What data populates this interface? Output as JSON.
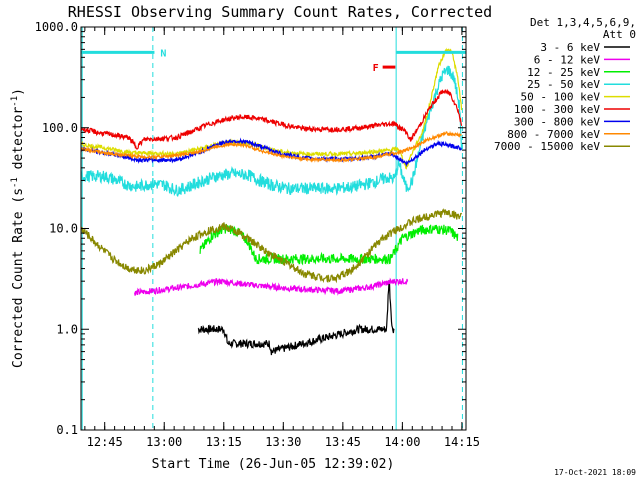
{
  "chart_data": {
    "type": "line",
    "title": "RHESSI Observing Summary Count Rates, Corrected",
    "xlabel": "Start Time (26-Jun-05 12:39:02)",
    "ylabel_main": "Corrected Count Rate (s",
    "ylabel_sup1": "-1",
    "ylabel_mid": " detector",
    "ylabel_sup2": "-1",
    "ylabel_end": ")",
    "y_scale": "log",
    "ylim": [
      0.1,
      1000
    ],
    "xlim_minutes": [
      0,
      97
    ],
    "x_ticks": [
      {
        "label": "12:45",
        "minutes": 5.97
      },
      {
        "label": "13:00",
        "minutes": 20.97
      },
      {
        "label": "13:15",
        "minutes": 35.97
      },
      {
        "label": "13:30",
        "minutes": 50.97
      },
      {
        "label": "13:45",
        "minutes": 65.97
      },
      {
        "label": "14:00",
        "minutes": 80.97
      },
      {
        "label": "14:15",
        "minutes": 95.97
      }
    ],
    "y_ticks": [
      {
        "label": "0.1",
        "value": 0.1
      },
      {
        "label": "1.0",
        "value": 1
      },
      {
        "label": "10.0",
        "value": 10
      },
      {
        "label": "100.0",
        "value": 100
      },
      {
        "label": "1000.0",
        "value": 1000
      }
    ],
    "legend_header": [
      "Det 1,3,4,5,6,9,",
      "Att 0"
    ],
    "legend_position": "right",
    "footer_date": "17-Oct-2021 18:09",
    "flags": [
      {
        "label": "N",
        "color": "#22dddd",
        "x0": 0,
        "x1": 18.5,
        "y": 560
      },
      {
        "label": "F",
        "color": "#ee0000",
        "x0": 76.0,
        "x1": 79.2,
        "y": 400
      },
      {
        "label": "",
        "color": "#22dddd",
        "x0": 79.5,
        "x1": 97,
        "y": 560
      }
    ],
    "vlines": [
      {
        "minutes": 0.3,
        "color": "#22dddd",
        "style": "solid"
      },
      {
        "minutes": 18.1,
        "color": "#22dddd",
        "style": "dashed"
      },
      {
        "minutes": 79.4,
        "color": "#22dddd",
        "style": "solid"
      },
      {
        "minutes": 96.1,
        "color": "#22dddd",
        "style": "dashed"
      }
    ],
    "series": [
      {
        "name": "3 - 6 keV",
        "color": "#000000",
        "points": [
          [
            29.5,
            1.0
          ],
          [
            36,
            1.0
          ],
          [
            37,
            0.72
          ],
          [
            47.5,
            0.72
          ],
          [
            48,
            0.6
          ],
          [
            70,
            1.0
          ],
          [
            77,
            1.0
          ],
          [
            77.6,
            3.2
          ],
          [
            78.4,
            1.0
          ],
          [
            79,
            1.0
          ]
        ]
      },
      {
        "name": "6 - 12 keV",
        "color": "#ee00ee",
        "points": [
          [
            13.5,
            2.3
          ],
          [
            18,
            2.4
          ],
          [
            25,
            2.6
          ],
          [
            35,
            3.0
          ],
          [
            45,
            2.7
          ],
          [
            55,
            2.5
          ],
          [
            65,
            2.4
          ],
          [
            72,
            2.6
          ],
          [
            79,
            3.0
          ],
          [
            82.5,
            3.0
          ]
        ]
      },
      {
        "name": "12 - 25 keV",
        "color": "#00ee00",
        "points": [
          [
            30,
            6.0
          ],
          [
            33,
            8.5
          ],
          [
            36,
            10
          ],
          [
            39,
            9.5
          ],
          [
            42,
            7.5
          ],
          [
            44,
            5
          ],
          [
            78,
            5.0
          ],
          [
            81,
            8.0
          ],
          [
            85,
            9.5
          ],
          [
            89,
            10
          ],
          [
            93,
            9.5
          ],
          [
            95,
            8
          ]
        ]
      },
      {
        "name": "25 - 50 keV",
        "color": "#22dddd",
        "points": [
          [
            0,
            33
          ],
          [
            6,
            33
          ],
          [
            9,
            30
          ],
          [
            12,
            27
          ],
          [
            14,
            26
          ],
          [
            18,
            28
          ],
          [
            21,
            27
          ],
          [
            24,
            24
          ],
          [
            26,
            25
          ],
          [
            30,
            29
          ],
          [
            34,
            33
          ],
          [
            38,
            35
          ],
          [
            42,
            34
          ],
          [
            45,
            30
          ],
          [
            48,
            27
          ],
          [
            52,
            25
          ],
          [
            58,
            25
          ],
          [
            64,
            25
          ],
          [
            69,
            26
          ],
          [
            74,
            29
          ],
          [
            77,
            32
          ],
          [
            79,
            31
          ],
          [
            80,
            45
          ],
          [
            82,
            25
          ],
          [
            83.5,
            30
          ],
          [
            86,
            80
          ],
          [
            89,
            200
          ],
          [
            91,
            330
          ],
          [
            92.5,
            380
          ],
          [
            94,
            310
          ],
          [
            95.5,
            150
          ],
          [
            96,
            40
          ]
        ]
      },
      {
        "name": "50 - 100 keV",
        "color": "#dddd00",
        "points": [
          [
            0,
            68
          ],
          [
            5,
            64
          ],
          [
            9,
            60
          ],
          [
            12,
            57
          ],
          [
            14,
            56
          ],
          [
            18,
            56
          ],
          [
            24,
            55
          ],
          [
            30,
            62
          ],
          [
            34,
            68
          ],
          [
            38,
            72
          ],
          [
            42,
            70
          ],
          [
            46,
            64
          ],
          [
            50,
            58
          ],
          [
            56,
            55
          ],
          [
            62,
            55
          ],
          [
            68,
            55
          ],
          [
            74,
            58
          ],
          [
            78,
            60
          ],
          [
            80,
            62
          ],
          [
            82,
            40
          ],
          [
            83,
            52
          ],
          [
            86,
            90
          ],
          [
            88,
            180
          ],
          [
            90,
            400
          ],
          [
            92,
            600
          ],
          [
            93.5,
            560
          ],
          [
            95,
            300
          ],
          [
            96,
            140
          ]
        ]
      },
      {
        "name": "100 - 300 keV",
        "color": "#ee0000",
        "points": [
          [
            0,
            98
          ],
          [
            4,
            90
          ],
          [
            8,
            85
          ],
          [
            12,
            80
          ],
          [
            14,
            64
          ],
          [
            16,
            77
          ],
          [
            20,
            78
          ],
          [
            24,
            80
          ],
          [
            28,
            92
          ],
          [
            32,
            108
          ],
          [
            36,
            120
          ],
          [
            40,
            128
          ],
          [
            44,
            125
          ],
          [
            48,
            115
          ],
          [
            52,
            105
          ],
          [
            56,
            98
          ],
          [
            62,
            96
          ],
          [
            68,
            98
          ],
          [
            72,
            102
          ],
          [
            76,
            108
          ],
          [
            79,
            110
          ],
          [
            82,
            90
          ],
          [
            83,
            75
          ],
          [
            85,
            100
          ],
          [
            88,
            160
          ],
          [
            91,
            230
          ],
          [
            93,
            220
          ],
          [
            95,
            150
          ],
          [
            96,
            100
          ]
        ]
      },
      {
        "name": "300 - 800 keV",
        "color": "#0000ee",
        "points": [
          [
            0,
            62
          ],
          [
            5,
            57
          ],
          [
            10,
            53
          ],
          [
            14,
            48
          ],
          [
            18,
            48
          ],
          [
            24,
            48
          ],
          [
            30,
            57
          ],
          [
            34,
            68
          ],
          [
            38,
            74
          ],
          [
            42,
            72
          ],
          [
            46,
            64
          ],
          [
            50,
            56
          ],
          [
            56,
            50
          ],
          [
            62,
            49
          ],
          [
            68,
            49
          ],
          [
            74,
            52
          ],
          [
            78,
            55
          ],
          [
            80,
            50
          ],
          [
            82,
            44
          ],
          [
            84,
            50
          ],
          [
            87,
            62
          ],
          [
            90,
            70
          ],
          [
            94,
            65
          ],
          [
            96,
            63
          ]
        ]
      },
      {
        "name": "800 - 7000 keV",
        "color": "#ff8800",
        "points": [
          [
            0,
            62
          ],
          [
            5,
            57
          ],
          [
            10,
            54
          ],
          [
            14,
            52
          ],
          [
            18,
            51
          ],
          [
            24,
            53
          ],
          [
            30,
            58
          ],
          [
            34,
            65
          ],
          [
            38,
            69
          ],
          [
            42,
            66
          ],
          [
            46,
            58
          ],
          [
            50,
            53
          ],
          [
            56,
            49
          ],
          [
            62,
            48
          ],
          [
            68,
            48
          ],
          [
            74,
            51
          ],
          [
            78,
            55
          ],
          [
            81,
            58
          ],
          [
            84,
            65
          ],
          [
            88,
            78
          ],
          [
            92,
            88
          ],
          [
            96,
            84
          ]
        ]
      },
      {
        "name": "7000 - 15000 keV",
        "color": "#888800",
        "points": [
          [
            0,
            10
          ],
          [
            4,
            7
          ],
          [
            8,
            5
          ],
          [
            12,
            4
          ],
          [
            16,
            3.8
          ],
          [
            20,
            4.5
          ],
          [
            24,
            6
          ],
          [
            28,
            8
          ],
          [
            32,
            9.5
          ],
          [
            36,
            10.5
          ],
          [
            40,
            9
          ],
          [
            44,
            7
          ],
          [
            48,
            5.5
          ],
          [
            52,
            4.5
          ],
          [
            56,
            3.6
          ],
          [
            60,
            3.3
          ],
          [
            64,
            3.2
          ],
          [
            68,
            3.8
          ],
          [
            72,
            5.5
          ],
          [
            76,
            8
          ],
          [
            80,
            10
          ],
          [
            84,
            12
          ],
          [
            88,
            13.5
          ],
          [
            92,
            14.5
          ],
          [
            96,
            13
          ]
        ]
      }
    ]
  }
}
